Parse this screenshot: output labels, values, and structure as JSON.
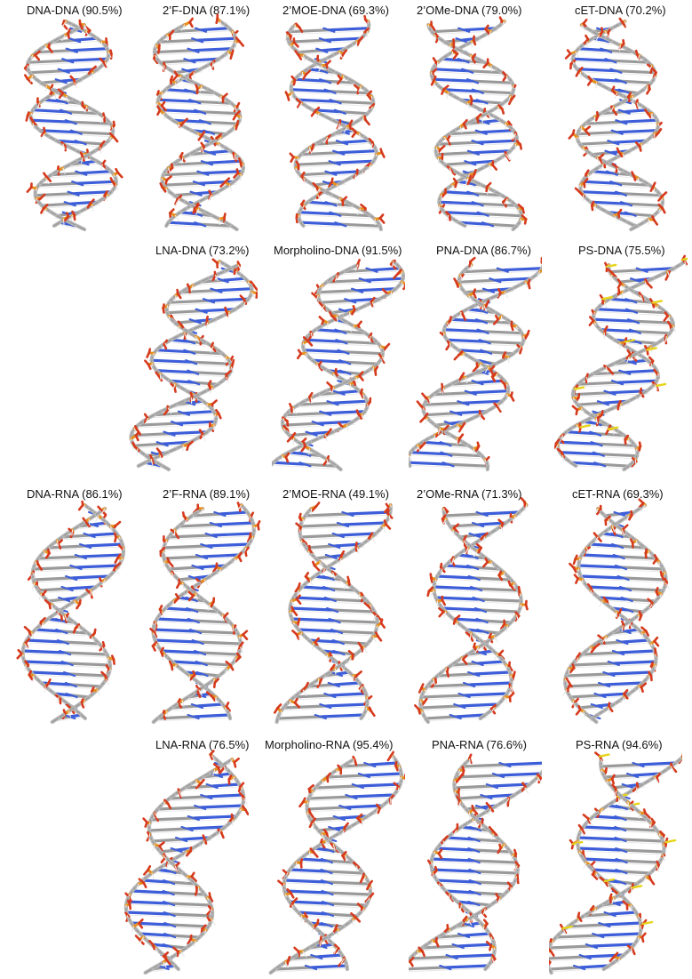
{
  "rows": [
    {
      "panels": [
        {
          "label": "DNA-DNA (90.5%)",
          "kind": "dsDNA"
        },
        {
          "label": "2’F-DNA (87.1%)",
          "kind": "dsDNA"
        },
        {
          "label": "2’MOE-DNA (69.3%)",
          "kind": "dsDNA"
        },
        {
          "label": "2’OMe-DNA (79.0%)",
          "kind": "dsDNA"
        },
        {
          "label": "cET-DNA (70.2%)",
          "kind": "dsDNA"
        }
      ]
    },
    {
      "panels": [
        {
          "label": "LNA-DNA (73.2%)",
          "kind": "dsDNA"
        },
        {
          "label": "Morpholino-DNA (91.5%)",
          "kind": "dsDNA"
        },
        {
          "label": "PNA-DNA (86.7%)",
          "kind": "dsDNA"
        },
        {
          "label": "PS-DNA (75.5%)",
          "kind": "dsDNA"
        }
      ]
    },
    {
      "panels": [
        {
          "label": "DNA-RNA (86.1%)",
          "kind": "dsRNA"
        },
        {
          "label": "2’F-RNA (89.1%)",
          "kind": "dsRNA"
        },
        {
          "label": "2’MOE-RNA (49.1%)",
          "kind": "dsRNA"
        },
        {
          "label": "2’OMe-RNA (71.3%)",
          "kind": "dsRNA"
        },
        {
          "label": "cET-RNA (69.3%)",
          "kind": "dsRNA"
        }
      ]
    },
    {
      "panels": [
        {
          "label": "LNA-RNA (76.5%)",
          "kind": "dsRNA"
        },
        {
          "label": "Morpholino-RNA (95.4%)",
          "kind": "dsRNA"
        },
        {
          "label": "PNA-RNA (76.6%)",
          "kind": "dsRNA"
        },
        {
          "label": "PS-RNA (94.6%)",
          "kind": "dsRNA"
        }
      ]
    }
  ],
  "colors": {
    "backbone": "#b8b8b8",
    "carbon": "#9a9a9a",
    "oxygen": "#d63a1e",
    "phosphorus": "#e8901c",
    "nitrogen": "#3d5ed8",
    "sulfur": "#e6d41a",
    "hydrogen": "#e9e9e9"
  }
}
